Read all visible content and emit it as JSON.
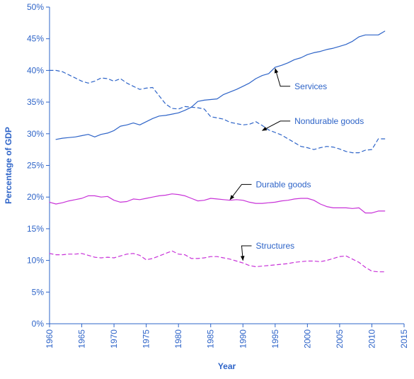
{
  "chart_data": {
    "type": "line",
    "title": "",
    "xlabel": "Year",
    "ylabel": "Percentage of GDP",
    "xlim": [
      1960,
      2015
    ],
    "ylim": [
      0,
      50
    ],
    "x_ticks": [
      1960,
      1965,
      1970,
      1975,
      1980,
      1985,
      1990,
      1995,
      2000,
      2005,
      2010,
      2015
    ],
    "x_tick_labels": [
      "1960",
      "1965",
      "1970",
      "1975",
      "1980",
      "1985",
      "1990",
      "1995",
      "2000",
      "2005",
      "2010",
      "2015"
    ],
    "y_ticks": [
      0,
      5,
      10,
      15,
      20,
      25,
      30,
      35,
      40,
      45,
      50
    ],
    "y_tick_labels": [
      "0%",
      "5%",
      "10%",
      "15%",
      "20%",
      "25%",
      "30%",
      "35%",
      "40%",
      "45%",
      "50%"
    ],
    "grid": false,
    "legend": "none",
    "colors": {
      "axis": "#2e64c8",
      "text": "#2e64c8",
      "blue_series": "#2e64c8",
      "purple_series": "#c832d8",
      "annotation": "#000000"
    },
    "series": [
      {
        "name": "Services",
        "color": "#2e64c8",
        "style": "solid",
        "x": [
          1961,
          1962,
          1963,
          1964,
          1965,
          1966,
          1967,
          1968,
          1969,
          1970,
          1971,
          1972,
          1973,
          1974,
          1975,
          1976,
          1977,
          1978,
          1979,
          1980,
          1981,
          1982,
          1983,
          1984,
          1985,
          1986,
          1987,
          1988,
          1989,
          1990,
          1991,
          1992,
          1993,
          1994,
          1995,
          1996,
          1997,
          1998,
          1999,
          2000,
          2001,
          2002,
          2003,
          2004,
          2005,
          2006,
          2007,
          2008,
          2009,
          2010,
          2011,
          2012
        ],
        "values": [
          29.1,
          29.3,
          29.4,
          29.5,
          29.7,
          29.9,
          29.5,
          29.9,
          30.1,
          30.5,
          31.2,
          31.4,
          31.7,
          31.4,
          31.9,
          32.4,
          32.8,
          32.9,
          33.1,
          33.3,
          33.7,
          34.2,
          35.1,
          35.3,
          35.4,
          35.5,
          36.2,
          36.6,
          37.0,
          37.5,
          38.0,
          38.7,
          39.2,
          39.5,
          40.5,
          40.8,
          41.2,
          41.7,
          42.0,
          42.5,
          42.8,
          43.0,
          43.3,
          43.5,
          43.8,
          44.1,
          44.6,
          45.3,
          45.6,
          45.6,
          45.6,
          46.2
        ]
      },
      {
        "name": "Nondurable goods",
        "color": "#2e64c8",
        "style": "dashed",
        "x": [
          1960,
          1961,
          1962,
          1963,
          1964,
          1965,
          1966,
          1967,
          1968,
          1969,
          1970,
          1971,
          1972,
          1973,
          1974,
          1975,
          1976,
          1977,
          1978,
          1979,
          1980,
          1981,
          1982,
          1983,
          1984,
          1985,
          1986,
          1987,
          1988,
          1989,
          1990,
          1991,
          1992,
          1993,
          1994,
          1995,
          1996,
          1997,
          1998,
          1999,
          2000,
          2001,
          2002,
          2003,
          2004,
          2005,
          2006,
          2007,
          2008,
          2009,
          2010,
          2011,
          2012
        ],
        "values": [
          40.0,
          40.0,
          39.8,
          39.3,
          38.8,
          38.3,
          38.0,
          38.3,
          38.8,
          38.7,
          38.3,
          38.7,
          38.0,
          37.5,
          37.0,
          37.2,
          37.3,
          36.0,
          34.7,
          34.0,
          33.9,
          34.3,
          34.2,
          34.1,
          33.9,
          32.7,
          32.5,
          32.3,
          31.8,
          31.6,
          31.4,
          31.5,
          31.9,
          31.3,
          30.6,
          30.2,
          29.8,
          29.2,
          28.6,
          28.0,
          27.8,
          27.5,
          27.8,
          28.0,
          27.9,
          27.6,
          27.2,
          27.0,
          27.0,
          27.4,
          27.5,
          29.2,
          29.2
        ]
      },
      {
        "name": "Durable goods",
        "color": "#c832d8",
        "style": "solid",
        "x": [
          1960,
          1961,
          1962,
          1963,
          1964,
          1965,
          1966,
          1967,
          1968,
          1969,
          1970,
          1971,
          1972,
          1973,
          1974,
          1975,
          1976,
          1977,
          1978,
          1979,
          1980,
          1981,
          1982,
          1983,
          1984,
          1985,
          1986,
          1987,
          1988,
          1989,
          1990,
          1991,
          1992,
          1993,
          1994,
          1995,
          1996,
          1997,
          1998,
          1999,
          2000,
          2001,
          2002,
          2003,
          2004,
          2005,
          2006,
          2007,
          2008,
          2009,
          2010,
          2011,
          2012
        ],
        "values": [
          19.2,
          18.9,
          19.1,
          19.4,
          19.6,
          19.8,
          20.2,
          20.2,
          20.0,
          20.1,
          19.5,
          19.2,
          19.3,
          19.7,
          19.6,
          19.8,
          20.0,
          20.2,
          20.3,
          20.5,
          20.4,
          20.2,
          19.8,
          19.4,
          19.5,
          19.8,
          19.7,
          19.6,
          19.5,
          19.6,
          19.5,
          19.2,
          19.0,
          19.0,
          19.1,
          19.2,
          19.4,
          19.5,
          19.7,
          19.8,
          19.8,
          19.5,
          18.9,
          18.5,
          18.3,
          18.3,
          18.3,
          18.2,
          18.3,
          17.5,
          17.5,
          17.8,
          17.8
        ]
      },
      {
        "name": "Structures",
        "color": "#c832d8",
        "style": "dashed",
        "x": [
          1960,
          1961,
          1962,
          1963,
          1964,
          1965,
          1966,
          1967,
          1968,
          1969,
          1970,
          1971,
          1972,
          1973,
          1974,
          1975,
          1976,
          1977,
          1978,
          1979,
          1980,
          1981,
          1982,
          1983,
          1984,
          1985,
          1986,
          1987,
          1988,
          1989,
          1990,
          1991,
          1992,
          1993,
          1994,
          1995,
          1996,
          1997,
          1998,
          1999,
          2000,
          2001,
          2002,
          2003,
          2004,
          2005,
          2006,
          2007,
          2008,
          2009,
          2010,
          2011,
          2012
        ],
        "values": [
          11.1,
          10.9,
          10.9,
          11.0,
          11.0,
          11.1,
          10.8,
          10.5,
          10.4,
          10.5,
          10.4,
          10.7,
          11.0,
          11.1,
          10.8,
          10.1,
          10.3,
          10.7,
          11.1,
          11.5,
          11.0,
          10.9,
          10.3,
          10.3,
          10.4,
          10.6,
          10.6,
          10.4,
          10.2,
          9.9,
          9.6,
          9.2,
          9.0,
          9.1,
          9.2,
          9.3,
          9.4,
          9.5,
          9.7,
          9.8,
          9.9,
          9.9,
          9.8,
          10.0,
          10.3,
          10.6,
          10.7,
          10.2,
          9.7,
          8.9,
          8.3,
          8.2,
          8.2
        ]
      }
    ],
    "annotations": [
      {
        "text": "Services",
        "arrow_to": [
          1995,
          40.3
        ],
        "label_at": [
          1998,
          37.5
        ]
      },
      {
        "text": "Nondurable goods",
        "arrow_to": [
          1993,
          30.5
        ],
        "label_at": [
          1998,
          32.0
        ]
      },
      {
        "text": "Durable goods",
        "arrow_to": [
          1988,
          19.6
        ],
        "label_at": [
          1992,
          22.0
        ]
      },
      {
        "text": "Structures",
        "arrow_to": [
          1990,
          10.0
        ],
        "label_at": [
          1992,
          12.3
        ]
      }
    ]
  }
}
